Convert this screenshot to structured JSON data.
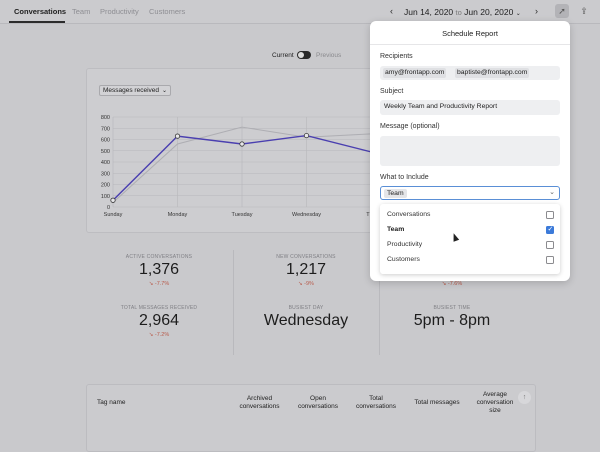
{
  "tabs": [
    {
      "label": "Conversations",
      "active": true
    },
    {
      "label": "Team",
      "active": false
    },
    {
      "label": "Productivity",
      "active": false
    },
    {
      "label": "Customers",
      "active": false
    }
  ],
  "date_range": {
    "start": "Jun 14, 2020",
    "separator": "to",
    "end": "Jun 20, 2020"
  },
  "toggle": {
    "current_label": "Current",
    "previous_label": "Previous"
  },
  "metric_select": "Messages received",
  "chart_data": {
    "type": "line",
    "categories": [
      "Sunday",
      "Monday",
      "Tuesday",
      "Wednesday",
      "Thursday"
    ],
    "x_visible_labels": [
      "Sunday",
      "Monday",
      "Tuesday",
      "Wednesday",
      "Thu"
    ],
    "y_ticks": [
      "0",
      "100",
      "200",
      "300",
      "400",
      "500",
      "600",
      "700",
      "800"
    ],
    "ylim": [
      0,
      800
    ],
    "grid": true,
    "series": [
      {
        "values": [
          60,
          630,
          560,
          635,
          490
        ],
        "color": "#4a3fb0"
      },
      {
        "values": [
          40,
          560,
          710,
          620,
          650
        ],
        "color": "#aeaeb3"
      }
    ]
  },
  "stats": [
    {
      "label": "ACTIVE CONVERSATIONS",
      "value": "1,376",
      "delta": "↘ -7.7%"
    },
    {
      "label": "NEW CONVERSATIONS",
      "value": "1,217",
      "delta": "↘ -9%"
    },
    {
      "label": "",
      "value": "",
      "delta": "↘ -7.6%"
    },
    {
      "label": "TOTAL MESSAGES RECEIVED",
      "value": "2,964",
      "delta": "↘ -7.2%"
    },
    {
      "label": "BUSIEST DAY",
      "value": "Wednesday",
      "delta": ""
    },
    {
      "label": "BUSIEST TIME",
      "value": "5pm - 8pm",
      "delta": ""
    }
  ],
  "table": {
    "headers": [
      "Tag name",
      "Archived conversations",
      "Open conversations",
      "Total conversations",
      "Total messages",
      "Average conversation size"
    ]
  },
  "modal": {
    "title": "Schedule Report",
    "recipients_label": "Recipients",
    "recipients": [
      "amy@frontapp.com",
      "baptiste@frontapp.com"
    ],
    "subject_label": "Subject",
    "subject_value": "Weekly Team and Productivity Report",
    "message_label": "Message (optional)",
    "message_value": "",
    "include_label": "What to Include",
    "include_selected": "Team",
    "options": [
      {
        "label": "Conversations",
        "checked": false,
        "bold": false
      },
      {
        "label": "Team",
        "checked": true,
        "bold": true
      },
      {
        "label": "Productivity",
        "checked": false,
        "bold": false
      },
      {
        "label": "Customers",
        "checked": false,
        "bold": false
      }
    ]
  },
  "icons": {
    "prev": "chevron-left-icon",
    "next": "chevron-right-icon",
    "schedule": "paper-plane-icon",
    "share": "share-icon",
    "upload": "upload-icon"
  }
}
